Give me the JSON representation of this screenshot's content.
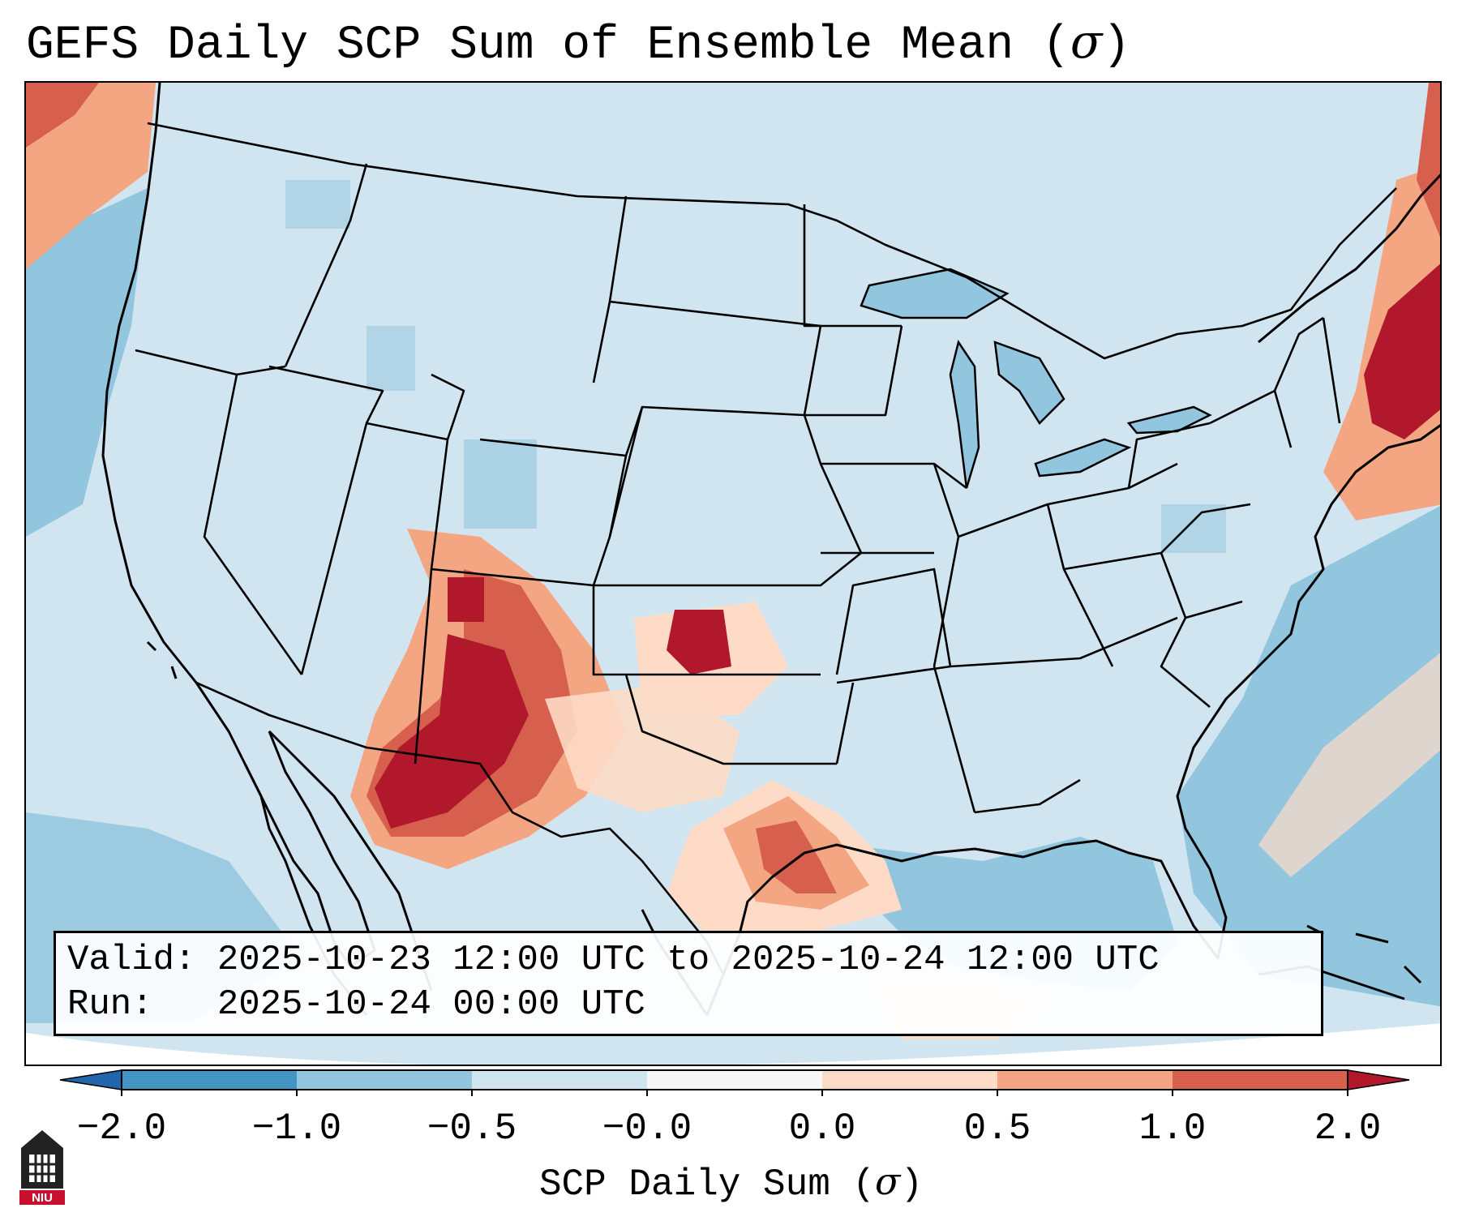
{
  "title": {
    "text": "GEFS Daily SCP Sum of Ensemble Mean (",
    "sigma": "σ",
    "close": ")"
  },
  "info": {
    "valid_label": "Valid:",
    "valid_value": "2025-10-23 12:00 UTC to 2025-10-24 12:00 UTC",
    "run_label": "Run:",
    "run_value": "2025-10-24 00:00 UTC"
  },
  "colorbar": {
    "tick_labels": [
      "−2.0",
      "−1.0",
      "−0.5",
      "−0.0",
      "0.0",
      "0.5",
      "1.0",
      "2.0"
    ],
    "colors": [
      "#4393c3",
      "#92c5de",
      "#d1e5f0",
      "#f7f7f7",
      "#fddbc7",
      "#f4a582",
      "#d6604d",
      "#b2182b"
    ],
    "under_color": "#2166ac",
    "over_color": "#b2182b",
    "label": "SCP Daily Sum (",
    "label_sigma": "σ",
    "label_close": ")"
  },
  "logo": {
    "text": "NIU"
  },
  "map": {
    "background_color": "#d1e5f0",
    "ocean_color": "#92c5de",
    "border_color": "#000000"
  }
}
